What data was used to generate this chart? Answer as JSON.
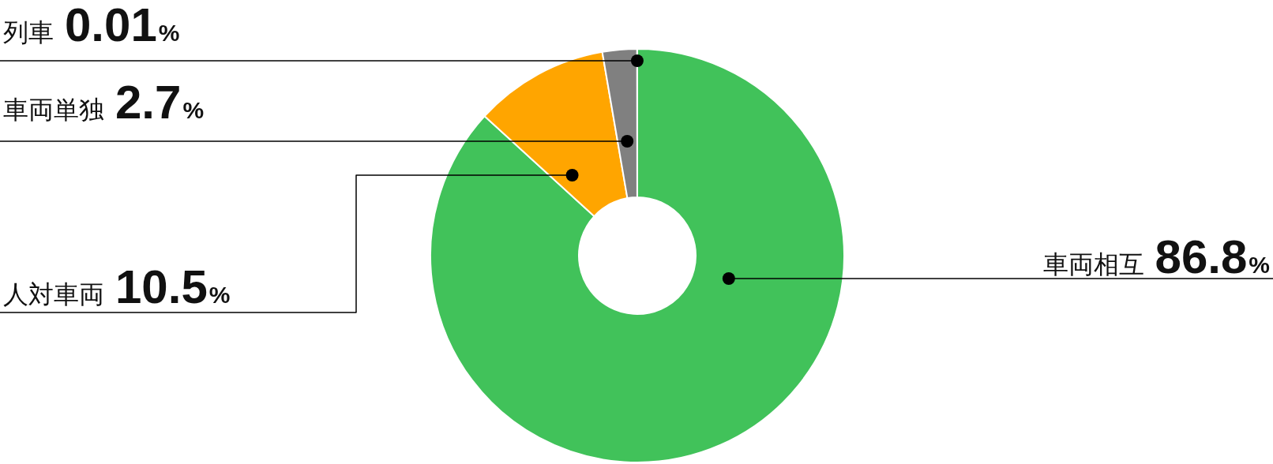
{
  "chart_data": {
    "type": "donut",
    "categories": [
      "車両相互",
      "人対車両",
      "車両単独",
      "列車"
    ],
    "values": [
      86.8,
      10.5,
      2.7,
      0.01
    ],
    "colors": [
      "#41c25a",
      "#ffa500",
      "#808080",
      "#5b7fd6"
    ],
    "value_labels": [
      "86.8%",
      "10.5%",
      "2.7%",
      "0.01%"
    ]
  }
}
